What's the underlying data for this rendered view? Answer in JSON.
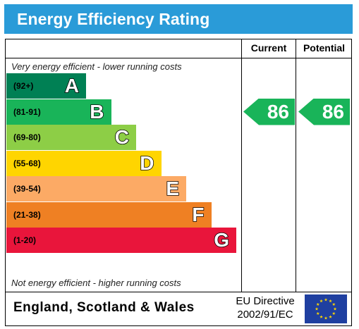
{
  "header": {
    "title": "Energy Efficiency Rating"
  },
  "columns": {
    "current": "Current",
    "potential": "Potential"
  },
  "notes": {
    "top": "Very energy efficient - lower running costs",
    "bottom": "Not energy efficient - higher running costs"
  },
  "footer": {
    "country": "England, Scotland & Wales",
    "directive_line1": "EU Directive",
    "directive_line2": "2002/91/EC"
  },
  "chart_data": {
    "type": "bar",
    "categories": [
      "A",
      "B",
      "C",
      "D",
      "E",
      "F",
      "G"
    ],
    "ranges": [
      "(92+)",
      "(81-91)",
      "(69-80)",
      "(55-68)",
      "(39-54)",
      "(21-38)",
      "(1-20)"
    ],
    "colors": [
      "#008054",
      "#19b459",
      "#8dce46",
      "#ffd500",
      "#fcaa65",
      "#ef8023",
      "#e9153b"
    ],
    "current": {
      "label": "Current",
      "value": "86",
      "band": "B"
    },
    "potential": {
      "label": "Potential",
      "value": "86",
      "band": "B"
    }
  }
}
